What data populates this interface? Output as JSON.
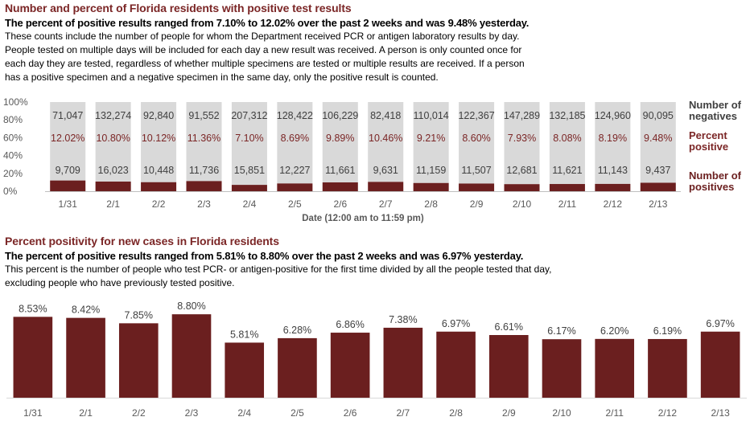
{
  "section1": {
    "title": "Number and percent of Florida residents with positive test results",
    "subtitle": "The percent of positive results ranged from 7.10% to 12.02% over the past 2 weeks and was 9.48% yesterday.",
    "description": [
      "These counts include the number of people for whom the Department received PCR or antigen laboratory results by day.",
      "People tested on multiple days will be included for each day a new result was received. A person is only counted once for",
      "each day they are tested, regardless of whether multiple specimens are tested or multiple results are received. If a person",
      "has a positive specimen and a negative specimen in the same day, only the positive result is counted."
    ]
  },
  "section2": {
    "title": "Percent positivity for new cases in Florida residents",
    "subtitle": "The percent of positive results ranged from 5.81% to 8.80% over the past 2 weeks and was 6.97% yesterday.",
    "description": [
      "This percent is the number of people who test PCR- or antigen-positive for the first time divided by all the people tested that day,",
      "excluding people who have previously tested positive."
    ]
  },
  "colors": {
    "positive": "#6b1f1f",
    "negative": "#d9d9d9",
    "title": "#7b2626",
    "percent_text": "#7b2626"
  },
  "chart_data": [
    {
      "type": "bar",
      "stacked": true,
      "categories": [
        "1/31",
        "2/1",
        "2/2",
        "2/3",
        "2/4",
        "2/5",
        "2/6",
        "2/7",
        "2/8",
        "2/9",
        "2/10",
        "2/11",
        "2/12",
        "2/13"
      ],
      "series": [
        {
          "name": "Number of positives",
          "values": [
            9709,
            16023,
            10448,
            11736,
            15851,
            12227,
            11661,
            9631,
            11159,
            11507,
            12681,
            11621,
            11143,
            9437
          ]
        },
        {
          "name": "Number of negatives",
          "values": [
            71047,
            132274,
            92840,
            91552,
            207312,
            128422,
            106229,
            82418,
            110014,
            122367,
            147289,
            132185,
            124960,
            90095
          ]
        }
      ],
      "percent_positive": [
        "12.02%",
        "10.80%",
        "10.12%",
        "11.36%",
        "7.10%",
        "8.69%",
        "9.89%",
        "10.46%",
        "9.21%",
        "8.60%",
        "7.93%",
        "8.08%",
        "8.19%",
        "9.48%"
      ],
      "negatives_labels": [
        "71,047",
        "132,274",
        "92,840",
        "91,552",
        "207,312",
        "128,422",
        "106,229",
        "82,418",
        "110,014",
        "122,367",
        "147,289",
        "132,185",
        "124,960",
        "90,095"
      ],
      "positives_labels": [
        "9,709",
        "16,023",
        "10,448",
        "11,736",
        "15,851",
        "12,227",
        "11,661",
        "9,631",
        "11,159",
        "11,507",
        "12,681",
        "11,621",
        "11,143",
        "9,437"
      ],
      "yticks": [
        "100%",
        "80%",
        "60%",
        "40%",
        "20%",
        "0%"
      ],
      "ylim": [
        0,
        100
      ],
      "xlabel": "Date (12:00 am to 11:59 pm)",
      "ylabel": "",
      "legend": [
        {
          "label": "Number of negatives",
          "lines": [
            "Number of",
            "negatives"
          ]
        },
        {
          "label": "Percent positive",
          "lines": [
            "Percent",
            "positive"
          ]
        },
        {
          "label": "Number of positives",
          "lines": [
            "Number of",
            "positives"
          ]
        }
      ],
      "legend_position": "right"
    },
    {
      "type": "bar",
      "categories": [
        "1/31",
        "2/1",
        "2/2",
        "2/3",
        "2/4",
        "2/5",
        "2/6",
        "2/7",
        "2/8",
        "2/9",
        "2/10",
        "2/11",
        "2/12",
        "2/13"
      ],
      "values": [
        8.53,
        8.42,
        7.85,
        8.8,
        5.81,
        6.28,
        6.86,
        7.38,
        6.97,
        6.61,
        6.17,
        6.2,
        6.19,
        6.97
      ],
      "labels": [
        "8.53%",
        "8.42%",
        "7.85%",
        "8.80%",
        "5.81%",
        "6.28%",
        "6.86%",
        "7.38%",
        "6.97%",
        "6.61%",
        "6.17%",
        "6.20%",
        "6.19%",
        "6.97%"
      ],
      "title": "Percent positivity for new cases in Florida residents",
      "xlabel": "",
      "ylabel": ""
    }
  ]
}
